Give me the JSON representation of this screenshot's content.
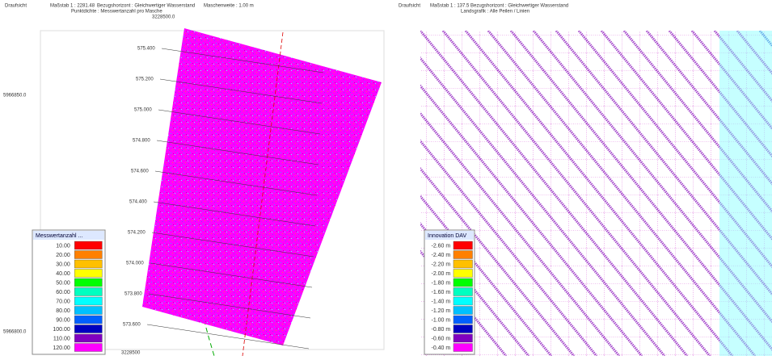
{
  "left_panel": {
    "header": {
      "view": "Draufsicht",
      "scale": "Maßstab 1 : 2281.48",
      "reference": "Bezugshorizont : Gleichwertiger Wasserstand",
      "mesh": "Maschenweite : 1.00 m",
      "density": "Punktdichte : Messwertanzahl pro Masche",
      "easting_top": "3228500.0"
    },
    "axis_labels": {
      "northing_top": "5966850.0",
      "northing_bottom": "5966800.0",
      "easting_bottom": "3228500"
    },
    "stations": [
      "575.400",
      "575.200",
      "575.000",
      "574.800",
      "574.600",
      "574.400",
      "574.200",
      "574.000",
      "573.800",
      "573.600"
    ],
    "legend": {
      "title": "Messwertanzahl ...",
      "entries": [
        {
          "label": "10.00",
          "color": "#ff0000"
        },
        {
          "label": "20.00",
          "color": "#ff8000"
        },
        {
          "label": "30.00",
          "color": "#ffc000"
        },
        {
          "label": "40.00",
          "color": "#ffff00"
        },
        {
          "label": "50.00",
          "color": "#00ff00"
        },
        {
          "label": "60.00",
          "color": "#00ffc0"
        },
        {
          "label": "70.00",
          "color": "#00ffff"
        },
        {
          "label": "80.00",
          "color": "#00c0ff"
        },
        {
          "label": "90.00",
          "color": "#0060ff"
        },
        {
          "label": "100.00",
          "color": "#0000c0"
        },
        {
          "label": "110.00",
          "color": "#8000c0"
        },
        {
          "label": "120.00",
          "color": "#ff00ff"
        }
      ]
    }
  },
  "right_panel": {
    "header": {
      "view": "Draufsicht",
      "scale": "Maßstab 1 : 137.5",
      "reference": "Bezugshorizont : Gleichwertiger Wasserstand",
      "layer": "Landsgrafik : Alle Peilen / Linien"
    },
    "legend": {
      "title": "Innovation DAV",
      "entries": [
        {
          "label": "-2.60 m",
          "color": "#ff0000"
        },
        {
          "label": "-2.40 m",
          "color": "#ff8000"
        },
        {
          "label": "-2.20 m",
          "color": "#ffc000"
        },
        {
          "label": "-2.00 m",
          "color": "#ffff00"
        },
        {
          "label": "-1.80 m",
          "color": "#00ff00"
        },
        {
          "label": "-1.60 m",
          "color": "#00ffc0"
        },
        {
          "label": "-1.40 m",
          "color": "#00ffff"
        },
        {
          "label": "-1.20 m",
          "color": "#00c0ff"
        },
        {
          "label": "-1.00 m",
          "color": "#0060ff"
        },
        {
          "label": "-0.80 m",
          "color": "#0000c0"
        },
        {
          "label": "-0.60 m",
          "color": "#8000c0"
        },
        {
          "label": "-0.40 m",
          "color": "#ff00ff"
        }
      ]
    }
  }
}
